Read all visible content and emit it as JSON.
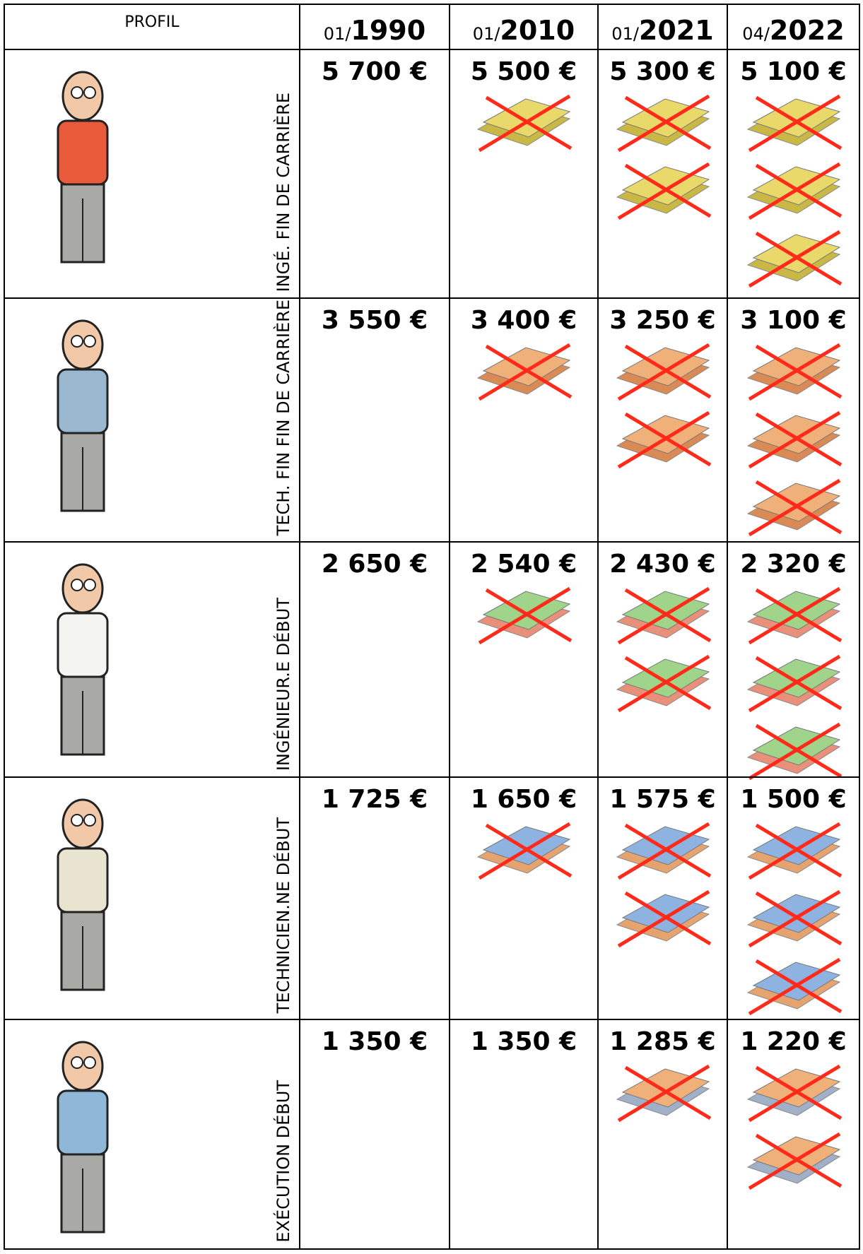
{
  "header": {
    "profile": "PROFIL",
    "dates": [
      {
        "prefix": "01/",
        "year": "1990"
      },
      {
        "prefix": "01/",
        "year": "2010"
      },
      {
        "prefix": "01/",
        "year": "2021"
      },
      {
        "prefix": "04/",
        "year": "2022"
      }
    ]
  },
  "rows": [
    {
      "label": "INGÉ. FIN DE CARRIÈRE",
      "values": [
        "5 700 €",
        "5 500 €",
        "5 300 €",
        "5 100 €"
      ]
    },
    {
      "label": "TECH. FIN FIN DE CARRIÈRE",
      "values": [
        "3 550 €",
        "3 400 €",
        "3 250 €",
        "3 100 €"
      ]
    },
    {
      "label": "INGÉNIEUR.E DÉBUT",
      "values": [
        "2 650 €",
        "2 540 €",
        "2 430 €",
        "2 320 €"
      ]
    },
    {
      "label": "TECHNICIEN.NE DÉBUT",
      "values": [
        "1 725 €",
        "1 650 €",
        "1 575 €",
        "1 500 €"
      ]
    },
    {
      "label": "EXÉCUTION DÉBUT",
      "values": [
        "1 350 €",
        "1 350 €",
        "1 285 €",
        "1 220 €"
      ]
    }
  ]
}
